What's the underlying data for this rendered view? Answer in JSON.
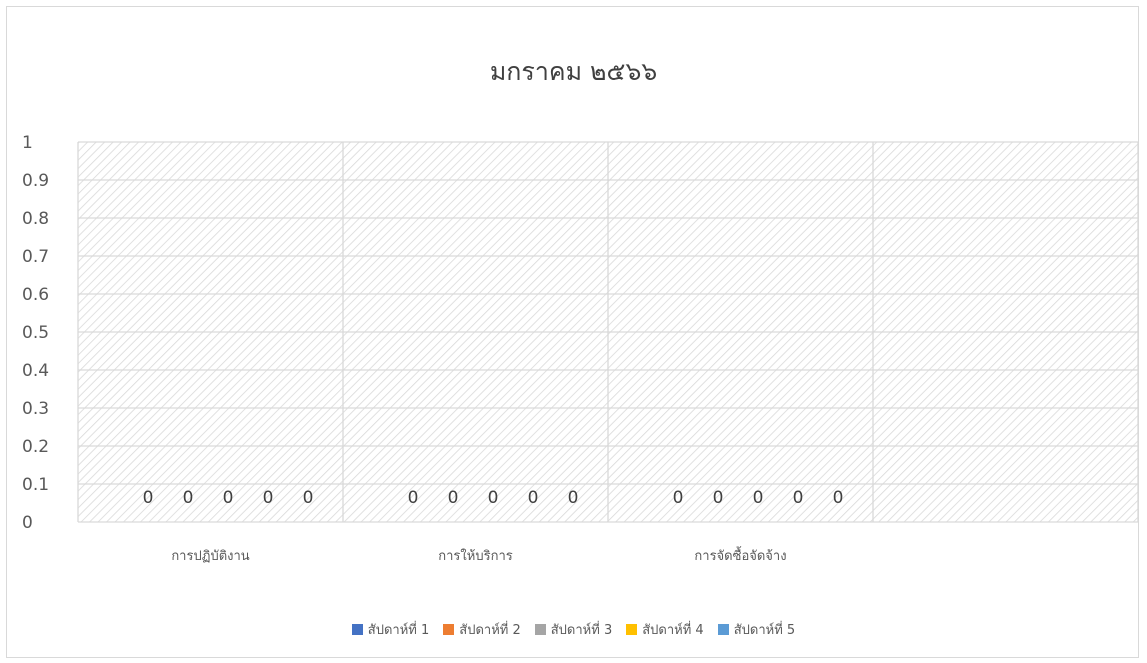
{
  "chart_data": {
    "type": "bar",
    "title": "มกราคม ๒๕๖๖",
    "categories": [
      "การปฏิบัติงาน",
      "การให้บริการ",
      "การจัดซื้อจัดจ้าง",
      ""
    ],
    "series": [
      {
        "name": "สัปดาห์ที่ 1",
        "color": "#4472c4",
        "values": [
          0,
          0,
          0,
          null
        ]
      },
      {
        "name": "สัปดาห์ที่ 2",
        "color": "#ed7d31",
        "values": [
          0,
          0,
          0,
          null
        ]
      },
      {
        "name": "สัปดาห์ที่ 3",
        "color": "#a5a5a5",
        "values": [
          0,
          0,
          0,
          null
        ]
      },
      {
        "name": "สัปดาห์ที่ 4",
        "color": "#ffc000",
        "values": [
          0,
          0,
          0,
          null
        ]
      },
      {
        "name": "สัปดาห์ที่ 5",
        "color": "#5b9bd5",
        "values": [
          0,
          0,
          0,
          null
        ]
      }
    ],
    "ylim": [
      0,
      1
    ],
    "yticks": [
      "0",
      "0.1",
      "0.2",
      "0.3",
      "0.4",
      "0.5",
      "0.6",
      "0.7",
      "0.8",
      "0.9",
      "1"
    ],
    "data_labels": true,
    "grid": true,
    "legend_position": "bottom",
    "plot_fill": "diagonal-hatch"
  }
}
